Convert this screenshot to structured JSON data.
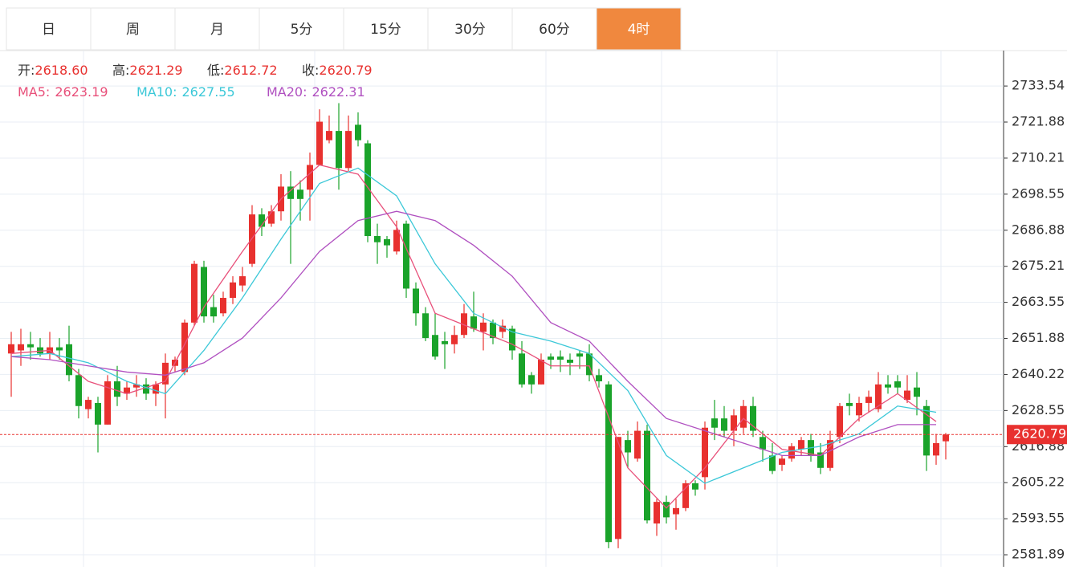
{
  "tabs": {
    "items": [
      "日",
      "周",
      "月",
      "5分",
      "15分",
      "30分",
      "60分",
      "4时"
    ],
    "active": 7,
    "active_color": "#f0883e"
  },
  "chart_data": {
    "type": "candlestick",
    "categories": [
      null,
      null,
      null,
      null,
      null,
      null,
      null,
      null,
      null,
      null,
      null,
      null,
      null,
      null,
      null,
      null,
      null,
      null,
      null,
      null,
      null,
      null,
      null,
      null,
      null,
      null,
      null,
      null,
      null,
      null,
      null,
      null,
      null,
      null,
      null,
      null,
      null,
      null,
      null,
      null,
      null,
      null,
      null,
      null,
      null,
      null,
      null,
      null,
      null,
      null,
      null,
      null,
      null,
      null,
      null,
      null,
      null,
      null,
      null,
      null,
      null,
      null,
      null,
      null,
      null,
      null,
      null,
      null,
      null,
      null,
      null,
      null,
      null,
      null,
      null,
      null,
      null,
      null,
      null,
      null,
      null,
      null,
      null,
      null,
      null,
      null,
      null,
      null,
      null,
      null,
      null,
      null,
      null,
      null,
      null,
      null,
      null,
      null
    ],
    "up_color": "#e8312f",
    "down_color": "#1aa32a",
    "ohlc": [
      [
        2647,
        2654,
        2633,
        2650
      ],
      [
        2648,
        2655,
        2643,
        2650
      ],
      [
        2650,
        2654,
        2645,
        2649
      ],
      [
        2649,
        2652,
        2646,
        2647
      ],
      [
        2647,
        2654,
        2645,
        2649
      ],
      [
        2649,
        2652,
        2645,
        2648
      ],
      [
        2650,
        2656,
        2638,
        2640
      ],
      [
        2640,
        2642,
        2626,
        2630
      ],
      [
        2629,
        2633,
        2626,
        2632
      ],
      [
        2631,
        2633,
        2615,
        2624
      ],
      [
        2624,
        2640,
        2624,
        2638
      ],
      [
        2638,
        2643,
        2630,
        2633
      ],
      [
        2634,
        2638,
        2632,
        2636
      ],
      [
        2636,
        2640,
        2633,
        2637
      ],
      [
        2637,
        2639,
        2632,
        2634
      ],
      [
        2634,
        2638,
        2630,
        2637
      ],
      [
        2637,
        2647,
        2626,
        2644
      ],
      [
        2643,
        2646,
        2641,
        2645
      ],
      [
        2641,
        2658,
        2640,
        2657
      ],
      [
        2657,
        2677,
        2656,
        2676
      ],
      [
        2675,
        2677,
        2657,
        2659
      ],
      [
        2662,
        2666,
        2657,
        2659
      ],
      [
        2660,
        2667,
        2659,
        2665
      ],
      [
        2665,
        2672,
        2663,
        2670
      ],
      [
        2669,
        2675,
        2667,
        2672
      ],
      [
        2676,
        2695,
        2675,
        2692
      ],
      [
        2692,
        2694,
        2685,
        2688
      ],
      [
        2689,
        2695,
        2688,
        2693
      ],
      [
        2693,
        2705,
        2690,
        2701
      ],
      [
        2701,
        2706,
        2676,
        2697
      ],
      [
        2700,
        2703,
        2690,
        2697
      ],
      [
        2700,
        2712,
        2690,
        2708
      ],
      [
        2708,
        2726,
        2708,
        2722
      ],
      [
        2716,
        2724,
        2715,
        2719
      ],
      [
        2719,
        2728,
        2700,
        2707
      ],
      [
        2707,
        2724,
        2706,
        2719
      ],
      [
        2721,
        2725,
        2714,
        2716
      ],
      [
        2715,
        2716,
        2683,
        2685
      ],
      [
        2685,
        2689,
        2676,
        2683
      ],
      [
        2684,
        2685,
        2678,
        2682
      ],
      [
        2680,
        2690,
        2679,
        2687
      ],
      [
        2689,
        2690,
        2665,
        2668
      ],
      [
        2668,
        2670,
        2656,
        2660
      ],
      [
        2660,
        2662,
        2651,
        2652
      ],
      [
        2653,
        2660,
        2645,
        2646
      ],
      [
        2651,
        2654,
        2642,
        2650
      ],
      [
        2650,
        2656,
        2647,
        2653
      ],
      [
        2653,
        2663,
        2652,
        2660
      ],
      [
        2659,
        2667,
        2654,
        2655
      ],
      [
        2654,
        2660,
        2648,
        2657
      ],
      [
        2657,
        2658,
        2650,
        2652
      ],
      [
        2654,
        2658,
        2652,
        2656
      ],
      [
        2655,
        2656,
        2645,
        2648
      ],
      [
        2647,
        2651,
        2636,
        2637
      ],
      [
        2640,
        2641,
        2634,
        2637
      ],
      [
        2637,
        2647,
        2637,
        2645
      ],
      [
        2646,
        2647,
        2642,
        2645
      ],
      [
        2646,
        2648,
        2641,
        2645
      ],
      [
        2645,
        2647,
        2640,
        2644
      ],
      [
        2647,
        2648,
        2642,
        2646
      ],
      [
        2647,
        2650,
        2638,
        2640
      ],
      [
        2640,
        2642,
        2636,
        2638
      ],
      [
        2637,
        2638,
        2584,
        2586
      ],
      [
        2587,
        2620,
        2584,
        2620
      ],
      [
        2619,
        2622,
        2610,
        2615
      ],
      [
        2613,
        2625,
        2612,
        2622
      ],
      [
        2622,
        2624,
        2592,
        2593
      ],
      [
        2592,
        2600,
        2588,
        2599
      ],
      [
        2599,
        2601,
        2592,
        2594
      ],
      [
        2595,
        2600,
        2590,
        2597
      ],
      [
        2597,
        2606,
        2596,
        2605
      ],
      [
        2605,
        2606,
        2601,
        2603
      ],
      [
        2607,
        2625,
        2603,
        2623
      ],
      [
        2626,
        2632,
        2619,
        2623
      ],
      [
        2626,
        2630,
        2620,
        2622
      ],
      [
        2622,
        2629,
        2617,
        2627
      ],
      [
        2623,
        2632,
        2621,
        2630
      ],
      [
        2630,
        2633,
        2620,
        2622
      ],
      [
        2620,
        2622,
        2612,
        2616
      ],
      [
        2614,
        2618,
        2608,
        2609
      ],
      [
        2611,
        2614,
        2609,
        2613
      ],
      [
        2613,
        2618,
        2612,
        2617
      ],
      [
        2616,
        2620,
        2614,
        2619
      ],
      [
        2619,
        2621,
        2612,
        2614
      ],
      [
        2615,
        2618,
        2608,
        2610
      ],
      [
        2610,
        2622,
        2609,
        2619
      ],
      [
        2620,
        2631,
        2618,
        2630
      ],
      [
        2631,
        2634,
        2627,
        2630
      ],
      [
        2627,
        2633,
        2625,
        2631
      ],
      [
        2631,
        2635,
        2628,
        2633
      ],
      [
        2629,
        2641,
        2628,
        2637
      ],
      [
        2637,
        2640,
        2634,
        2636
      ],
      [
        2638,
        2640,
        2634,
        2636
      ],
      [
        2632,
        2640,
        2631,
        2635
      ],
      [
        2636,
        2641,
        2627,
        2633
      ],
      [
        2630,
        2632,
        2609,
        2614
      ],
      [
        2614,
        2621,
        2611,
        2618
      ],
      [
        2618.6,
        2621.29,
        2612.72,
        2620.79
      ]
    ],
    "header_labels": [
      "开:",
      "高:",
      "低:",
      "收:"
    ],
    "last_value_labels": [
      "2618.60",
      "2621.29",
      "2612.72",
      "2620.79"
    ],
    "ma": [
      {
        "name": "MA5:",
        "color": "#e8507a",
        "current": 2623.19,
        "x": [
          0,
          4,
          8,
          12,
          16,
          20,
          24,
          28,
          32,
          36,
          40,
          44,
          48,
          52,
          56,
          60,
          64,
          68,
          72,
          76,
          80,
          84,
          88,
          92,
          96
        ],
        "values": [
          2647,
          2648,
          2638,
          2634,
          2638,
          2662,
          2680,
          2697,
          2708,
          2705,
          2688,
          2660,
          2655,
          2650,
          2643,
          2643,
          2610,
          2597,
          2610,
          2626,
          2616,
          2614,
          2626,
          2634,
          2625
        ]
      },
      {
        "name": "MA10:",
        "color": "#3cc8d8",
        "current": 2627.55,
        "x": [
          0,
          4,
          8,
          12,
          16,
          20,
          24,
          28,
          32,
          36,
          40,
          44,
          48,
          52,
          56,
          60,
          64,
          68,
          72,
          76,
          80,
          84,
          88,
          92,
          96
        ],
        "values": [
          2646,
          2647,
          2644,
          2638,
          2634,
          2648,
          2665,
          2684,
          2702,
          2707,
          2698,
          2676,
          2660,
          2654,
          2651,
          2647,
          2635,
          2614,
          2605,
          2610,
          2615,
          2617,
          2621,
          2630,
          2628
        ]
      },
      {
        "name": "MA20:",
        "color": "#b050c0",
        "current": 2622.31,
        "x": [
          0,
          4,
          8,
          12,
          16,
          20,
          24,
          28,
          32,
          36,
          40,
          44,
          48,
          52,
          56,
          60,
          64,
          68,
          72,
          76,
          80,
          84,
          88,
          92,
          96
        ],
        "values": [
          2646,
          2645,
          2643,
          2641,
          2640,
          2644,
          2652,
          2665,
          2680,
          2690,
          2693,
          2690,
          2682,
          2672,
          2657,
          2651,
          2638,
          2626,
          2622,
          2618,
          2614,
          2614,
          2620,
          2624,
          2624
        ]
      }
    ],
    "ylim": [
      2578.0,
      2745.0
    ],
    "yticks": [
      2733.54,
      2721.88,
      2710.21,
      2698.55,
      2686.88,
      2675.21,
      2663.55,
      2651.88,
      2640.22,
      2628.55,
      2616.88,
      2605.22,
      2593.55,
      2581.89
    ],
    "xgrid": [
      7,
      31,
      55,
      67,
      79,
      96
    ],
    "grid": true,
    "price_line_color": "#e8312f"
  }
}
